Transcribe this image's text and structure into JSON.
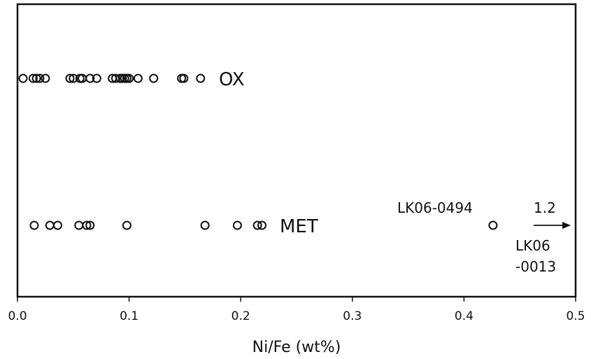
{
  "chart_data": {
    "type": "scatter",
    "title": "",
    "xlabel": "Ni/Fe (wt%)",
    "ylabel": "",
    "xlim": [
      0,
      0.5
    ],
    "xticks": [
      "0.0",
      "0.1",
      "0.2",
      "0.3",
      "0.4",
      "0.5"
    ],
    "grid": false,
    "series": [
      {
        "name": "OX",
        "x": [
          0.005,
          0.014,
          0.017,
          0.02,
          0.025,
          0.047,
          0.05,
          0.056,
          0.058,
          0.065,
          0.071,
          0.085,
          0.088,
          0.092,
          0.094,
          0.096,
          0.098,
          0.1,
          0.108,
          0.122,
          0.147,
          0.149,
          0.164
        ]
      },
      {
        "name": "MET",
        "x": [
          0.015,
          0.029,
          0.036,
          0.055,
          0.062,
          0.065,
          0.098,
          0.168,
          0.197,
          0.215,
          0.219,
          0.426
        ]
      }
    ],
    "annotations": {
      "point_label": "LK06-0494",
      "offscale_value": "1.2",
      "offscale_label_line1": "LK06",
      "offscale_label_line2": "-0013"
    }
  }
}
